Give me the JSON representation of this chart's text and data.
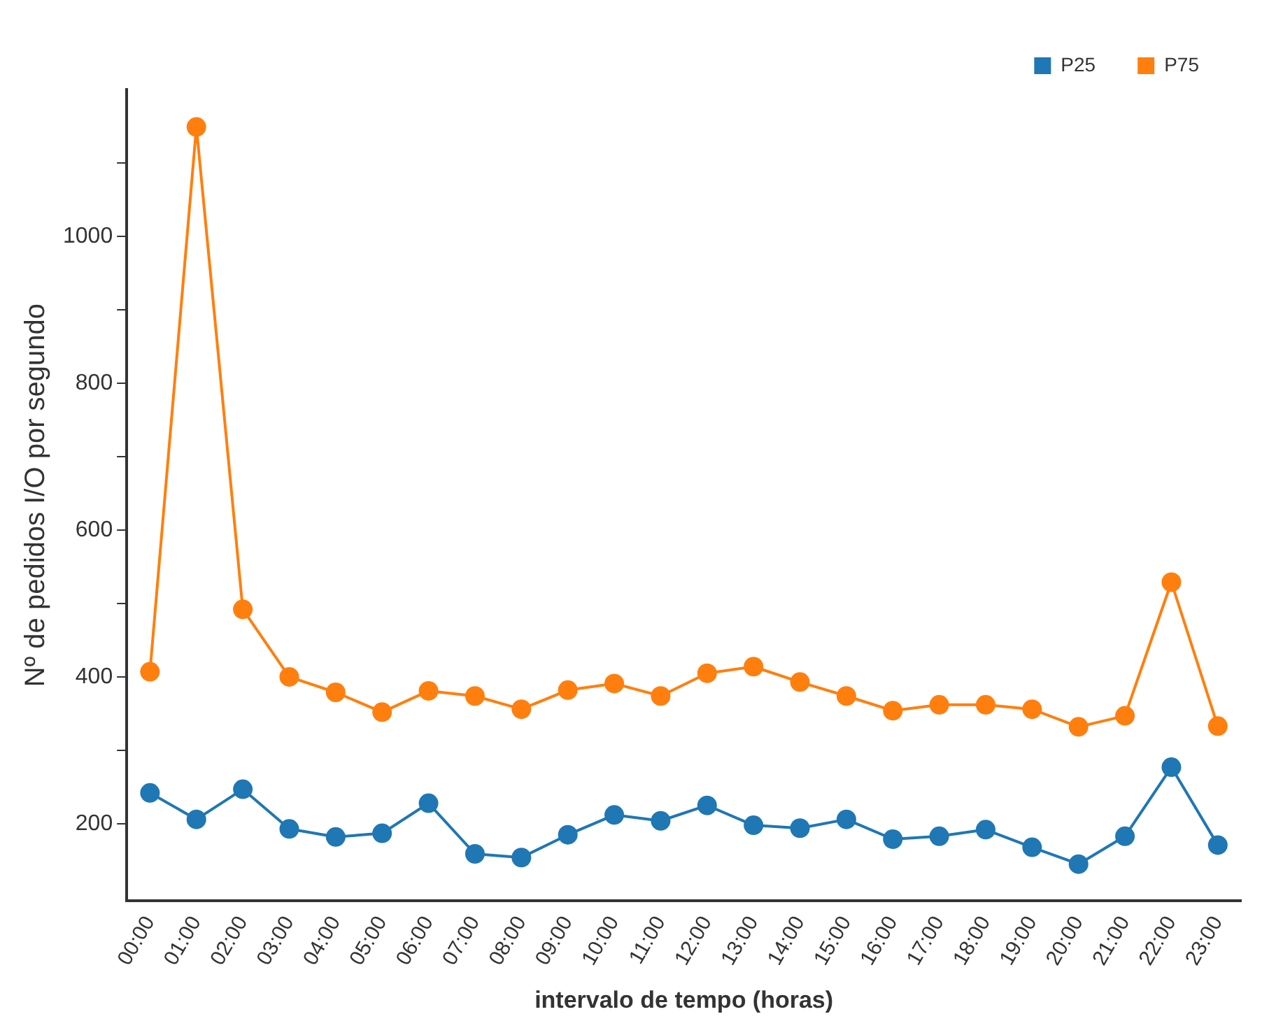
{
  "chart_data": {
    "type": "line",
    "xlabel": "intervalo de tempo (horas)",
    "ylabel": "Nº de pedidos I/O por segundo",
    "categories": [
      "00:00",
      "01:00",
      "02:00",
      "03:00",
      "04:00",
      "05:00",
      "06:00",
      "07:00",
      "08:00",
      "09:00",
      "10:00",
      "11:00",
      "12:00",
      "13:00",
      "14:00",
      "15:00",
      "16:00",
      "17:00",
      "18:00",
      "19:00",
      "20:00",
      "21:00",
      "22:00",
      "23:00"
    ],
    "series": [
      {
        "name": "P25",
        "color": "#1f77b4",
        "values": [
          242,
          206,
          247,
          193,
          182,
          187,
          228,
          159,
          154,
          185,
          212,
          204,
          225,
          198,
          194,
          206,
          179,
          183,
          192,
          168,
          145,
          183,
          277,
          171
        ]
      },
      {
        "name": "P75",
        "color": "#ff7f0e",
        "values": [
          407,
          1149,
          492,
          400,
          379,
          352,
          381,
          374,
          356,
          382,
          391,
          374,
          405,
          414,
          393,
          374,
          354,
          362,
          362,
          356,
          332,
          347,
          529,
          333
        ]
      }
    ],
    "ylim": [
      95,
      1200
    ],
    "yticks": [
      200,
      {
        "value": 300,
        "label": null
      },
      400,
      {
        "value": 500,
        "label": null
      },
      600,
      {
        "value": 700,
        "label": null
      },
      800,
      {
        "value": 900,
        "label": null
      },
      1000,
      {
        "value": 1100,
        "label": null
      }
    ],
    "grid": false,
    "legend": "top right",
    "marker": "circle",
    "line_style": "solid"
  }
}
